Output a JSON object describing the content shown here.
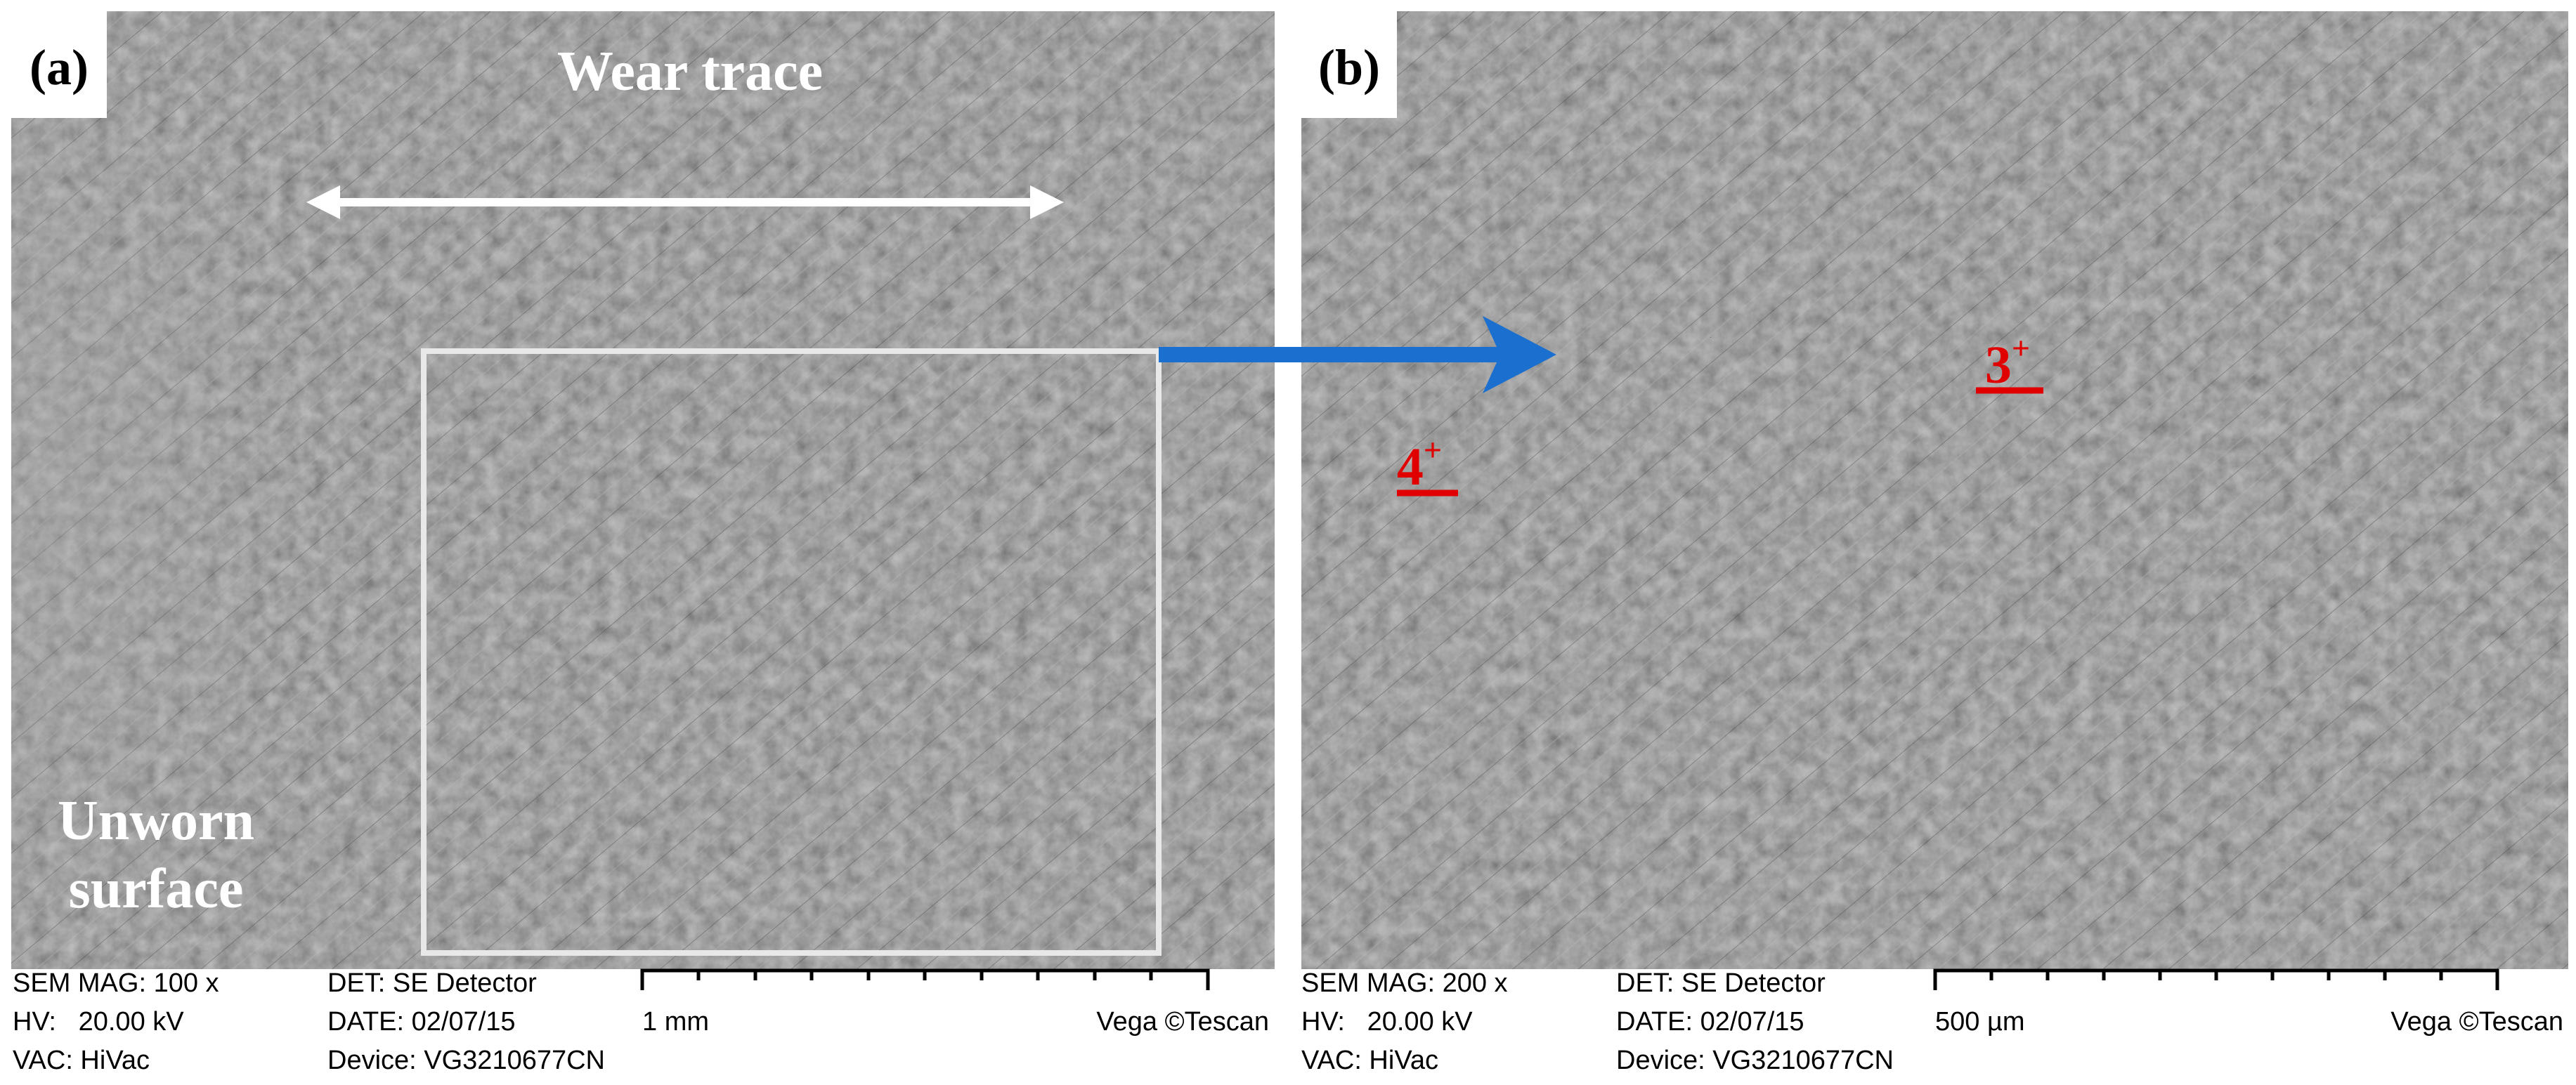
{
  "panels": [
    {
      "label": "(a)",
      "annotations": {
        "top": "Wear trace",
        "bottom_line1": "Unworn",
        "bottom_line2": "surface"
      },
      "info": {
        "sem_mag": "SEM MAG: 100 x",
        "hv": "HV:   20.00 kV",
        "vac": "VAC: HiVac",
        "det": "DET: SE Detector",
        "date": "DATE: 02/07/15",
        "device": "Device: VG3210677CN",
        "scale": "1 mm",
        "vendor": "Vega ©Tescan"
      }
    },
    {
      "label": "(b)",
      "markers": [
        {
          "number": "3",
          "sup": "+"
        },
        {
          "number": "4",
          "sup": "+"
        }
      ],
      "info": {
        "sem_mag": "SEM MAG: 200 x",
        "hv": "HV:   20.00 kV",
        "vac": "VAC: HiVac",
        "det": "DET: SE Detector",
        "date": "DATE: 02/07/15",
        "device": "Device: VG3210677CN",
        "scale": "500 µm",
        "vendor": "Vega ©Tescan"
      }
    }
  ]
}
